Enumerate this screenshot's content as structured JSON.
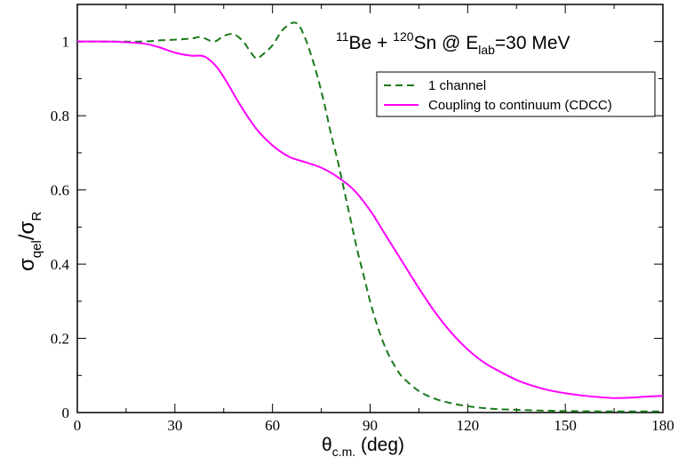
{
  "chart_data": {
    "type": "line",
    "title": {
      "parts": [
        "11",
        "Be + ",
        "120",
        "Sn @ E",
        "lab",
        "=30 MeV"
      ]
    },
    "xlabel": {
      "parts": [
        "θ",
        "c.m.",
        " (deg)"
      ]
    },
    "ylabel": {
      "parts": [
        "σ",
        "qel",
        "/σ",
        "R"
      ]
    },
    "xlim": [
      0,
      180
    ],
    "ylim": [
      0,
      1.1
    ],
    "xticks": [
      0,
      30,
      60,
      90,
      120,
      150,
      180
    ],
    "xtick_labels": [
      "0",
      "30",
      "60",
      "90",
      "120",
      "150",
      "180"
    ],
    "yticks": [
      0,
      0.2,
      0.4,
      0.6,
      0.8,
      1.0
    ],
    "ytick_labels": [
      "0",
      "0.2",
      "0.4",
      "0.6",
      "0.8",
      "1"
    ],
    "grid": false,
    "legend_position": "top-right",
    "series": [
      {
        "name": "1 channel",
        "color": "#1a7a1a",
        "dash": "dashed",
        "x": [
          0,
          10,
          20,
          25,
          30,
          35,
          38,
          42,
          45,
          48,
          51,
          53,
          55,
          57,
          60,
          63,
          66,
          68,
          70,
          72,
          74,
          76,
          78,
          80,
          82,
          84,
          86,
          88,
          90,
          92,
          94,
          96,
          98,
          100,
          105,
          110,
          115,
          120,
          125,
          130,
          140,
          150,
          160,
          170,
          180
        ],
        "y": [
          1.0,
          1.0,
          1.0,
          1.003,
          1.005,
          1.008,
          1.012,
          1.0,
          1.015,
          1.02,
          1.0,
          0.975,
          0.955,
          0.965,
          0.99,
          1.03,
          1.05,
          1.045,
          1.01,
          0.96,
          0.9,
          0.83,
          0.75,
          0.68,
          0.6,
          0.52,
          0.44,
          0.37,
          0.3,
          0.24,
          0.19,
          0.15,
          0.12,
          0.095,
          0.058,
          0.037,
          0.025,
          0.017,
          0.012,
          0.009,
          0.006,
          0.004,
          0.003,
          0.003,
          0.003
        ]
      },
      {
        "name": "Coupling to continuum (CDCC)",
        "color": "#ff00ff",
        "dash": "solid",
        "x": [
          0,
          10,
          20,
          25,
          30,
          35,
          38,
          40,
          43,
          46,
          50,
          55,
          60,
          65,
          70,
          75,
          80,
          85,
          90,
          95,
          100,
          105,
          110,
          115,
          120,
          125,
          130,
          135,
          140,
          145,
          150,
          155,
          160,
          165,
          170,
          175,
          180
        ],
        "y": [
          1.0,
          1.0,
          0.995,
          0.985,
          0.97,
          0.962,
          0.962,
          0.955,
          0.93,
          0.89,
          0.83,
          0.765,
          0.72,
          0.69,
          0.675,
          0.66,
          0.635,
          0.6,
          0.545,
          0.475,
          0.405,
          0.335,
          0.27,
          0.215,
          0.17,
          0.135,
          0.11,
          0.088,
          0.072,
          0.06,
          0.052,
          0.046,
          0.042,
          0.039,
          0.04,
          0.043,
          0.045
        ]
      }
    ]
  }
}
